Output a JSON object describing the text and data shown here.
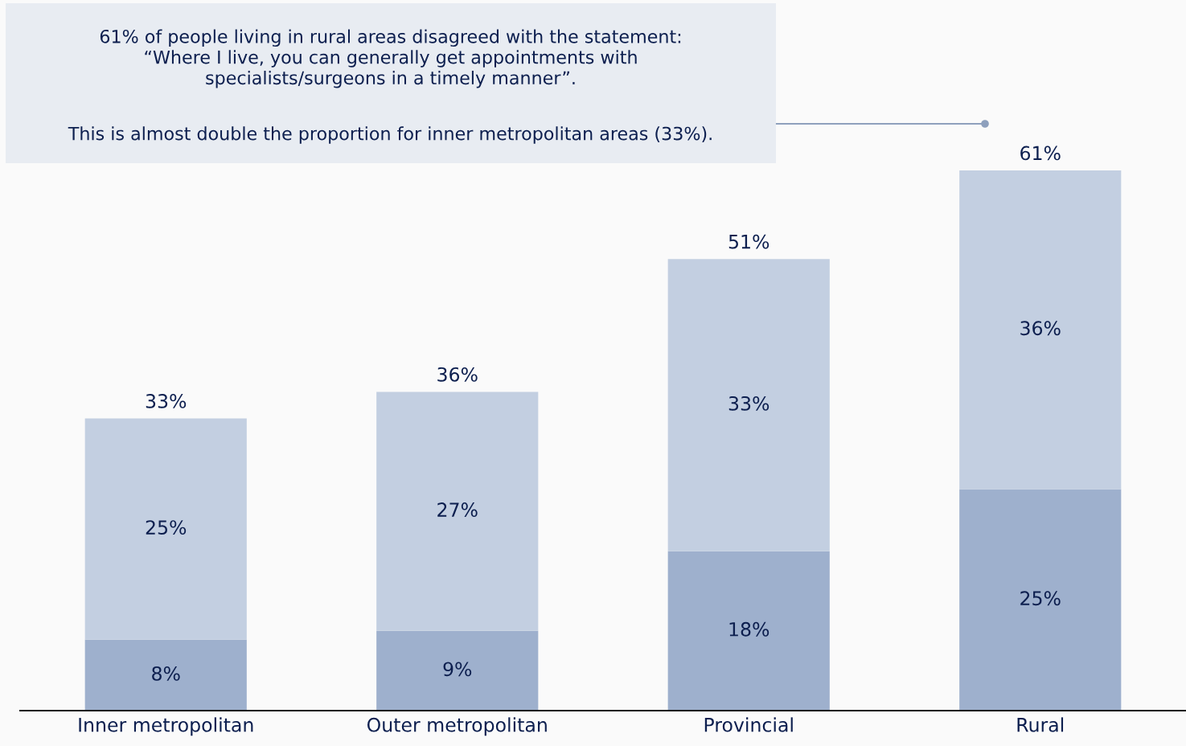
{
  "chart_data": {
    "type": "bar",
    "stacked": true,
    "categories": [
      "Inner metropolitan",
      "Outer metropolitan",
      "Provincial",
      "Rural"
    ],
    "series": [
      {
        "color": "#9eb0cd",
        "values": [
          8,
          9,
          18,
          25
        ],
        "value_labels": [
          "8%",
          "9%",
          "18%",
          "25%"
        ]
      },
      {
        "color": "#c3cfe1",
        "values": [
          25,
          27,
          33,
          36
        ],
        "value_labels": [
          "25%",
          "27%",
          "33%",
          "36%"
        ]
      }
    ],
    "totals": [
      "33%",
      "36%",
      "51%",
      "61%"
    ],
    "annotations": [
      "61% of people living in rural areas disagreed with the statement:\n“Where I live, you can generally get appointments with\nspecialists/surgeons in a timely manner”.",
      "This is almost double the proportion for inner metropolitan areas (33%)."
    ],
    "grid": false,
    "legend": false
  }
}
